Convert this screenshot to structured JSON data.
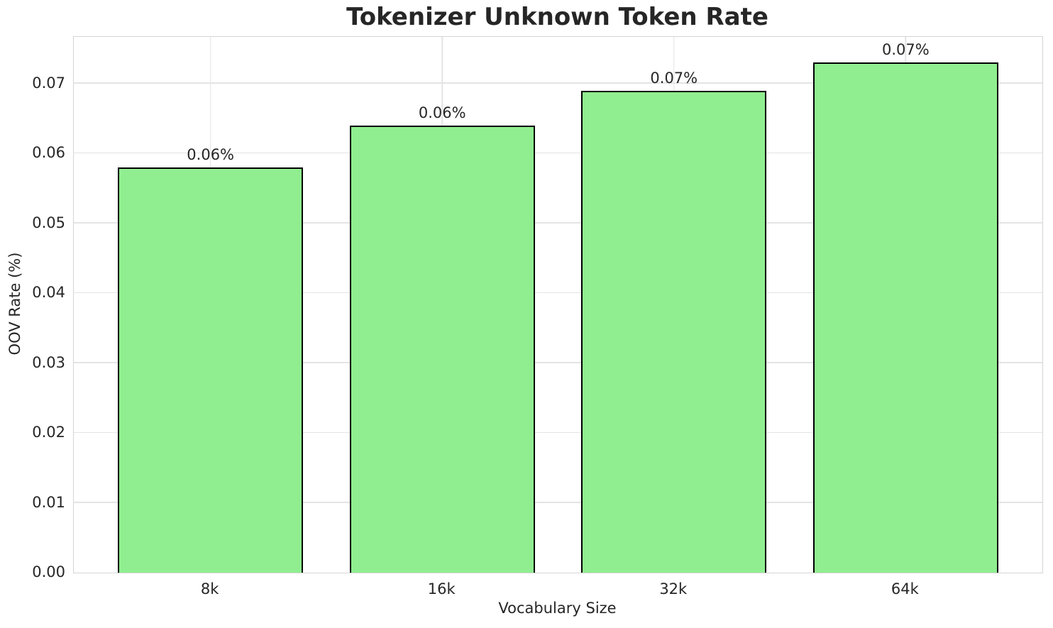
{
  "chart_data": {
    "type": "bar",
    "title": "Tokenizer Unknown Token Rate",
    "xlabel": "Vocabulary Size",
    "ylabel": "OOV Rate (%)",
    "categories": [
      "8k",
      "16k",
      "32k",
      "64k"
    ],
    "values": [
      0.058,
      0.064,
      0.069,
      0.073
    ],
    "bar_labels": [
      "0.06%",
      "0.06%",
      "0.07%",
      "0.07%"
    ],
    "yticks": [
      0.0,
      0.01,
      0.02,
      0.03,
      0.04,
      0.05,
      0.06,
      0.07
    ],
    "ytick_labels": [
      "0.00",
      "0.01",
      "0.02",
      "0.03",
      "0.04",
      "0.05",
      "0.06",
      "0.07"
    ],
    "ylim": [
      0,
      0.0767
    ],
    "xlim": [
      -0.59,
      3.59
    ],
    "bar_width": 0.8,
    "grid": true,
    "legend": false,
    "colors": {
      "bar_fill": "#90EE90",
      "bar_edge": "#000000",
      "grid": "#e4e4e4",
      "spine": "#d5d5d5",
      "text": "#262626"
    }
  }
}
